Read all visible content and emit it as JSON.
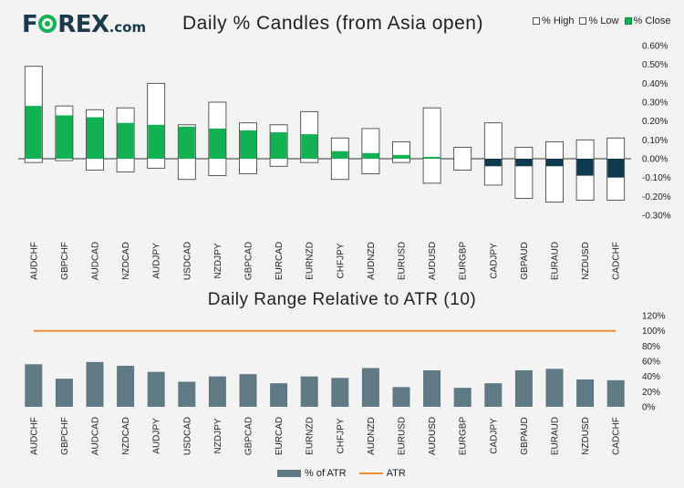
{
  "brand": {
    "logo_before": "F",
    "logo_after": "REX",
    "logo_suffix": ".com",
    "accent": "#12b253",
    "dark": "#1b3a4b"
  },
  "chart_data": [
    {
      "type": "bar",
      "subtype": "floating-candle",
      "title": "Daily % Candles (from Asia open)",
      "categories": [
        "AUDCHF",
        "GBPCHF",
        "AUDCAD",
        "NZDCAD",
        "AUDJPY",
        "USDCAD",
        "NZDJPY",
        "GBPCAD",
        "EURCAD",
        "EURNZD",
        "CHFJPY",
        "AUDNZD",
        "EURUSD",
        "AUDUSD",
        "EURGBP",
        "CADJPY",
        "GBPAUD",
        "EURAUD",
        "NZDUSD",
        "CADCHF"
      ],
      "series": [
        {
          "name": "% High",
          "values": [
            0.49,
            0.28,
            0.26,
            0.27,
            0.4,
            0.18,
            0.3,
            0.19,
            0.18,
            0.25,
            0.11,
            0.16,
            0.09,
            0.27,
            0.06,
            0.19,
            0.06,
            0.09,
            0.1,
            0.11
          ]
        },
        {
          "name": "% Low",
          "values": [
            -0.02,
            -0.01,
            -0.06,
            -0.07,
            -0.05,
            -0.11,
            -0.09,
            -0.08,
            -0.04,
            -0.02,
            -0.11,
            -0.08,
            -0.02,
            -0.13,
            -0.06,
            -0.14,
            -0.21,
            -0.23,
            -0.22,
            -0.22
          ]
        },
        {
          "name": "% Close",
          "values": [
            0.28,
            0.23,
            0.22,
            0.19,
            0.18,
            0.17,
            0.16,
            0.15,
            0.14,
            0.13,
            0.04,
            0.03,
            0.02,
            0.01,
            0.0,
            -0.04,
            -0.04,
            -0.04,
            -0.09,
            -0.1
          ]
        }
      ],
      "ylim": [
        -0.3,
        0.6
      ],
      "yticks": [
        "0.60%",
        "0.50%",
        "0.40%",
        "0.30%",
        "0.20%",
        "0.10%",
        "0.00%",
        "-0.10%",
        "-0.20%",
        "-0.30%"
      ],
      "colors": {
        "up": "#12b253",
        "down": "#0e3a4e",
        "range": "#ffffff"
      },
      "legend": "top-right"
    },
    {
      "type": "bar",
      "title": "Daily Range Relative to ATR (10)",
      "categories": [
        "AUDCHF",
        "GBPCHF",
        "AUDCAD",
        "NZDCAD",
        "AUDJPY",
        "USDCAD",
        "NZDJPY",
        "GBPCAD",
        "EURCAD",
        "EURNZD",
        "CHFJPY",
        "AUDNZD",
        "EURUSD",
        "AUDUSD",
        "EURGBP",
        "CADJPY",
        "GBPAUD",
        "EURAUD",
        "NZDUSD",
        "CADCHF"
      ],
      "series": [
        {
          "name": "% of ATR",
          "values": [
            56,
            37,
            59,
            54,
            46,
            33,
            40,
            43,
            31,
            40,
            38,
            51,
            26,
            48,
            25,
            31,
            48,
            50,
            36,
            35
          ]
        },
        {
          "name": "ATR",
          "values": [
            100,
            100,
            100,
            100,
            100,
            100,
            100,
            100,
            100,
            100,
            100,
            100,
            100,
            100,
            100,
            100,
            100,
            100,
            100,
            100
          ]
        }
      ],
      "ylim": [
        0,
        120
      ],
      "yticks": [
        "120%",
        "100%",
        "80%",
        "60%",
        "40%",
        "20%",
        "0%"
      ],
      "colors": {
        "bar": "#5f7a84",
        "line": "#f08c32"
      },
      "legend": "bottom-center"
    }
  ]
}
